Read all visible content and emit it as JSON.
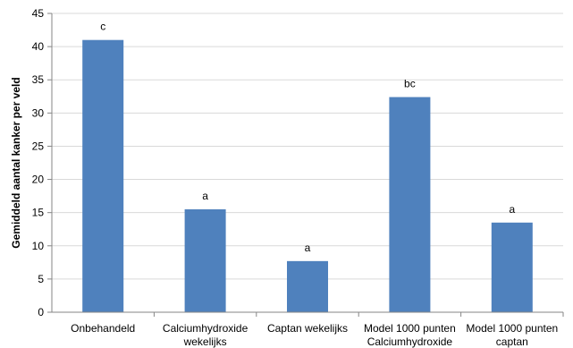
{
  "chart_data": {
    "type": "bar",
    "ylabel": "Gemiddeld aantal kanker per veld",
    "xlabel": "",
    "ylim": [
      0,
      45
    ],
    "yticks": [
      0,
      5,
      10,
      15,
      20,
      25,
      30,
      35,
      40,
      45
    ],
    "grid": true,
    "categories": [
      [
        "Onbehandeld"
      ],
      [
        "Calciumhydroxide",
        "wekelijks"
      ],
      [
        "Captan wekelijks"
      ],
      [
        "Model 1000 punten",
        "Calciumhydroxide"
      ],
      [
        "Model 1000 punten",
        "captan"
      ]
    ],
    "values": [
      41,
      15.5,
      7.7,
      32.4,
      13.5
    ],
    "significance": [
      "c",
      "a",
      "a",
      "bc",
      "a"
    ],
    "bar_color": "#4F81BD",
    "grid_color": "#D9D9D9"
  }
}
